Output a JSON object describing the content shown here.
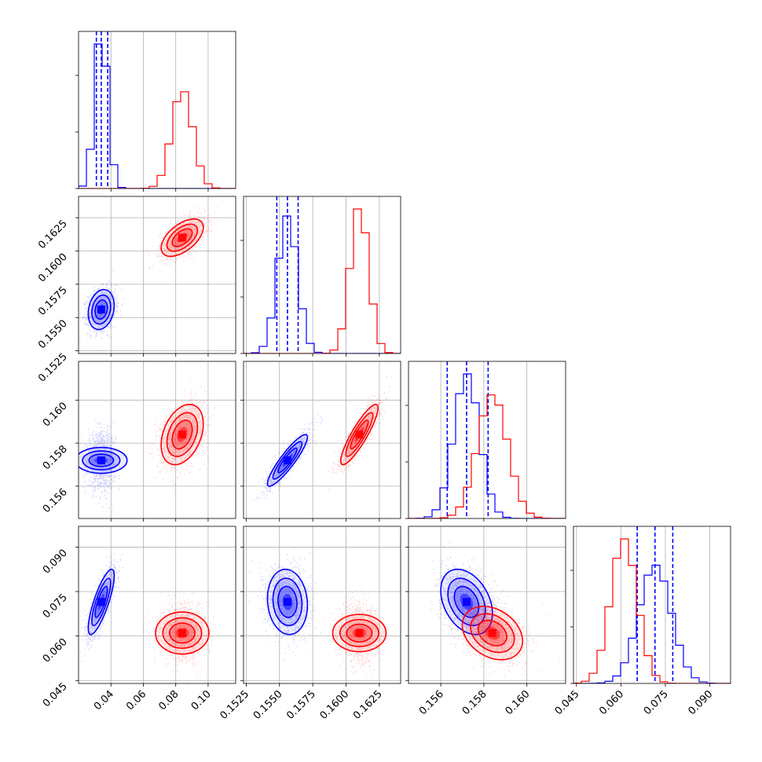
{
  "chart_data": {
    "type": "corner",
    "parameters": [
      {
        "ticks": [
          "0.04",
          "0.06",
          "0.08",
          "0.10"
        ],
        "tick_values": [
          0.04,
          0.06,
          0.08,
          0.1
        ],
        "range": [
          0.02,
          0.117
        ]
      },
      {
        "ticks": [
          "0.1525",
          "0.1550",
          "0.1575",
          "0.1600",
          "0.1625"
        ],
        "tick_values": [
          0.1525,
          0.155,
          0.1575,
          0.16,
          0.1625
        ],
        "range": [
          0.1523,
          0.1641
        ]
      },
      {
        "ticks": [
          "0.156",
          "0.158",
          "0.160"
        ],
        "tick_values": [
          0.156,
          0.158,
          0.16
        ],
        "range": [
          0.1545,
          0.1618
        ]
      },
      {
        "ticks": [
          "0.045",
          "0.060",
          "0.075",
          "0.090"
        ],
        "tick_values": [
          0.045,
          0.06,
          0.075,
          0.09
        ],
        "range": [
          0.044,
          0.097
        ]
      }
    ],
    "series": [
      {
        "color": "#0000ff",
        "mean": [
          0.034,
          0.1556,
          0.1572,
          0.0715
        ],
        "std": [
          0.004,
          0.00075,
          0.0006,
          0.0055
        ],
        "correlations": {
          "0-1": 0.2,
          "0-2": 0.0,
          "0-3": 0.8,
          "1-2": 0.9,
          "1-3": -0.1,
          "2-3": -0.35
        },
        "quantiles": [
          [
            0.031,
            0.034,
            0.038
          ],
          [
            0.1548,
            0.1556,
            0.1564
          ],
          [
            0.1563,
            0.1572,
            0.1582
          ],
          [
            0.0655,
            0.0715,
            0.0775
          ]
        ]
      },
      {
        "color": "#ff0000",
        "mean": [
          0.084,
          0.161,
          0.1584,
          0.061
        ],
        "std": [
          0.0065,
          0.0007,
          0.0007,
          0.0045
        ],
        "correlations": {
          "0-1": 0.55,
          "0-2": 0.35,
          "0-3": 0.0,
          "1-2": 0.88,
          "1-3": 0.0,
          "2-3": -0.3
        },
        "quantiles": []
      }
    ]
  }
}
